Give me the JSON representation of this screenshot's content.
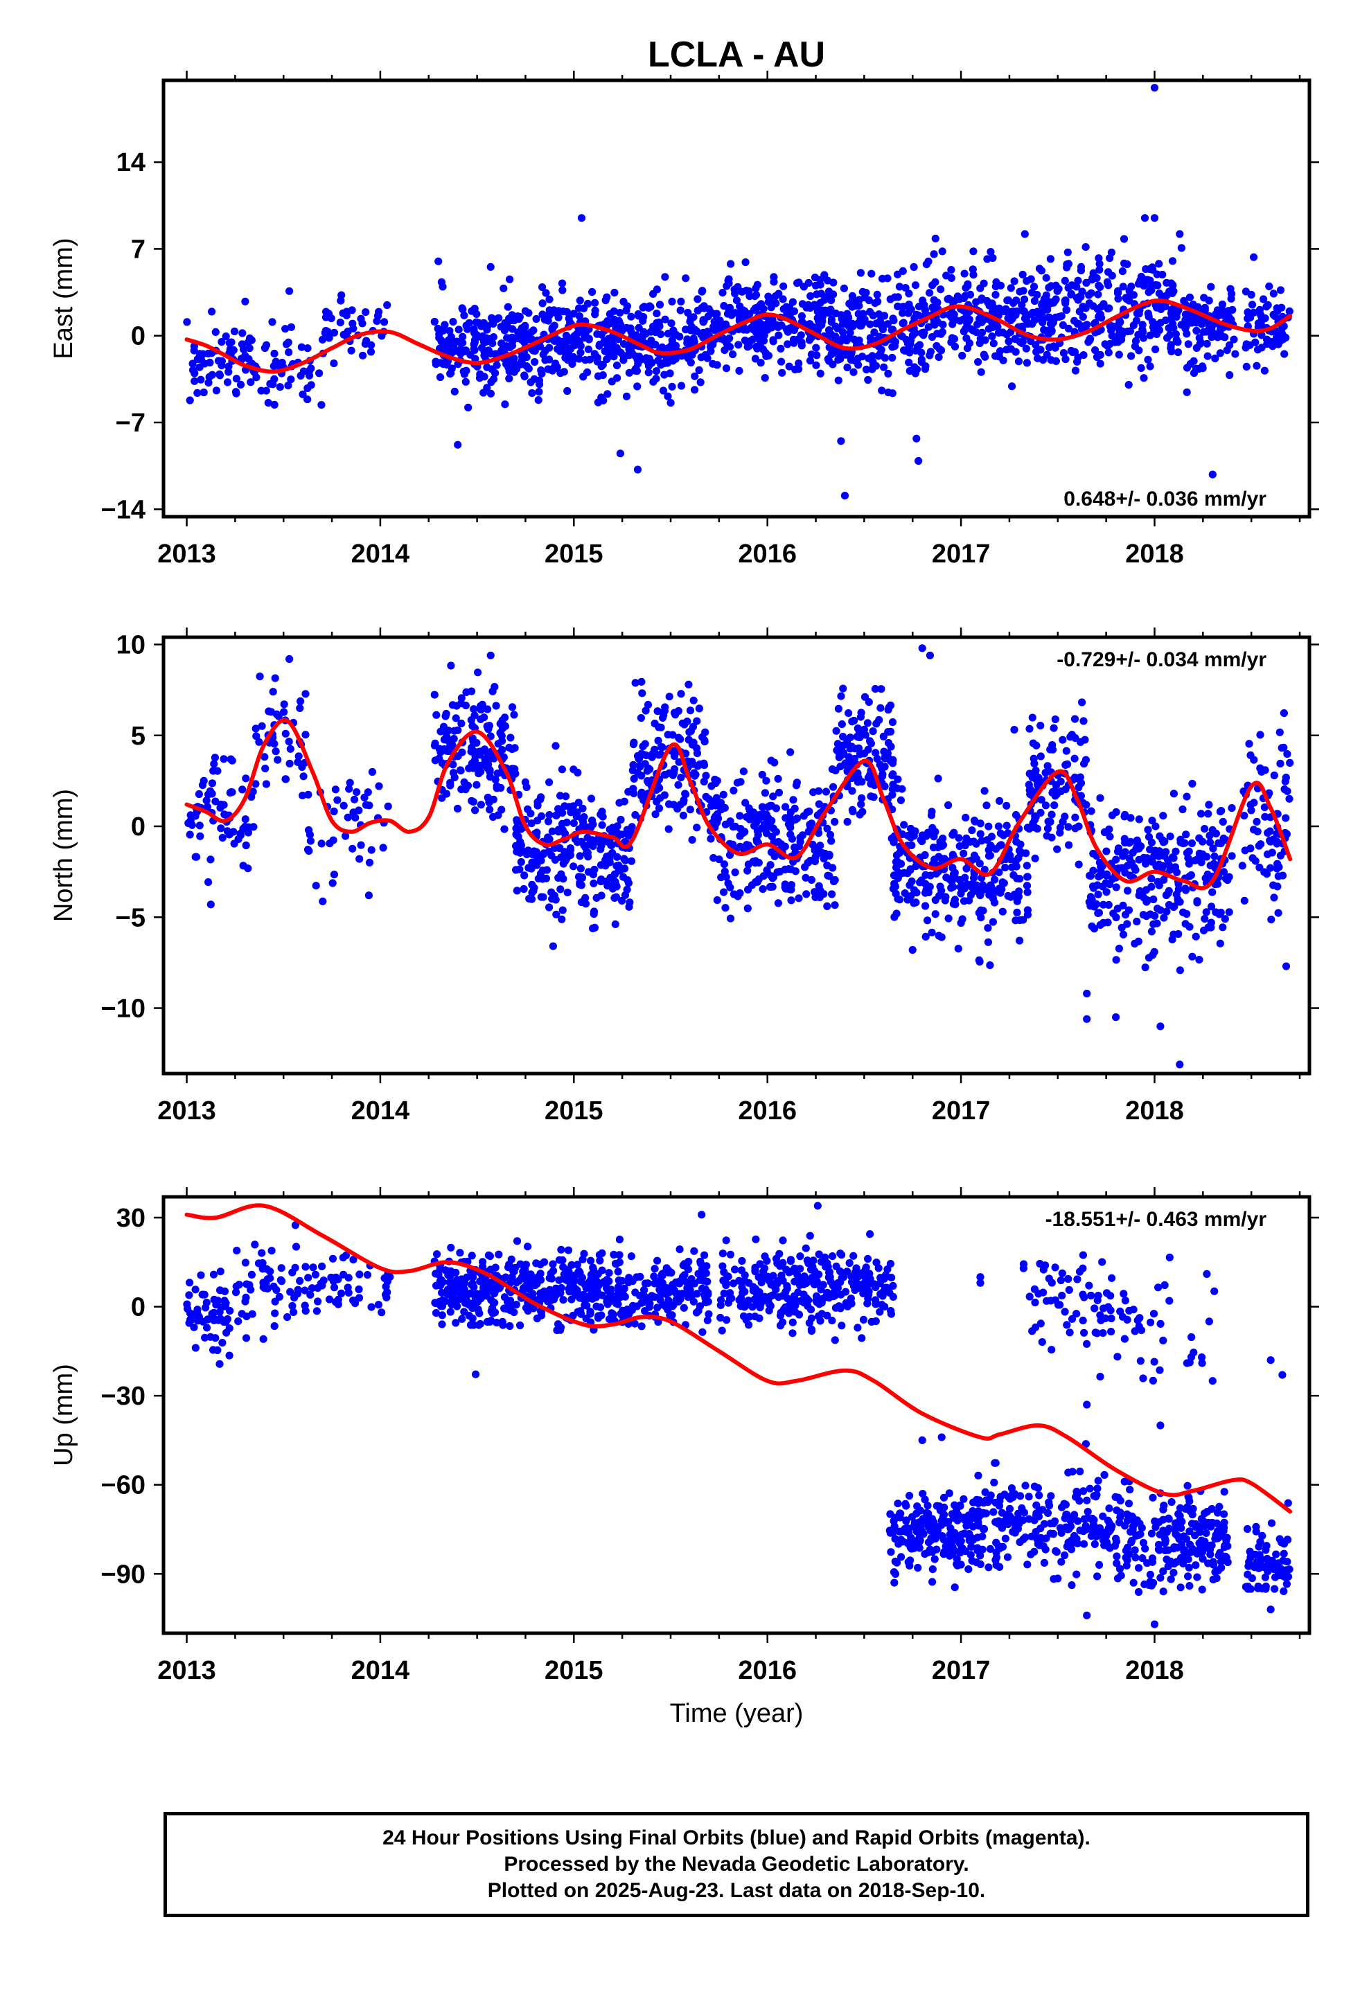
{
  "title": "LCLA - AU",
  "footer": {
    "line1": "24 Hour Positions Using Final Orbits (blue) and Rapid Orbits (magenta).",
    "line2": "Processed by the Nevada Geodetic Laboratory.",
    "line3": "Plotted on 2025-Aug-23. Last data on 2018-Sep-10."
  },
  "colors": {
    "observations": "#0000ff",
    "model": "#ff0000",
    "frame": "#000000"
  },
  "chart_data": [
    {
      "type": "scatter",
      "component": "east",
      "ylabel": "East (mm)",
      "xlabel": "",
      "xlim": [
        2012.88,
        2018.8
      ],
      "ylim": [
        -14.6,
        20.6
      ],
      "xticks": [
        2013,
        2014,
        2015,
        2016,
        2017,
        2018
      ],
      "yticks": [
        -14,
        -7,
        0,
        7,
        14
      ],
      "rate_text": "0.648+/- 0.036 mm/yr",
      "rate_position": "bottom-right",
      "model_curve": {
        "x": [
          2013.0,
          2013.1,
          2013.2,
          2013.3,
          2013.45,
          2013.6,
          2013.75,
          2013.9,
          2014.05,
          2014.2,
          2014.35,
          2014.5,
          2014.65,
          2014.8,
          2014.95,
          2015.05,
          2015.2,
          2015.35,
          2015.45,
          2015.6,
          2015.75,
          2015.9,
          2016.0,
          2016.1,
          2016.25,
          2016.4,
          2016.55,
          2016.7,
          2016.85,
          2016.95,
          2017.05,
          2017.2,
          2017.35,
          2017.5,
          2017.65,
          2017.8,
          2017.95,
          2018.05,
          2018.2,
          2018.35,
          2018.5,
          2018.6,
          2018.7
        ],
        "y": [
          -0.3,
          -0.8,
          -1.6,
          -2.4,
          -2.9,
          -2.2,
          -1.0,
          0.1,
          0.3,
          -0.7,
          -1.7,
          -2.2,
          -1.6,
          -0.6,
          0.5,
          0.9,
          0.3,
          -0.8,
          -1.4,
          -1.1,
          0.1,
          1.2,
          1.7,
          1.3,
          0.1,
          -1.0,
          -0.7,
          0.5,
          1.6,
          2.3,
          2.2,
          1.2,
          0.0,
          -0.3,
          0.3,
          1.5,
          2.6,
          2.8,
          2.0,
          1.0,
          0.4,
          0.6,
          1.6
        ]
      },
      "clusters": [
        {
          "x": [
            2013.0,
            2013.35
          ],
          "center": -2.0,
          "spread": 1.6,
          "n": 70
        },
        {
          "x": [
            2013.35,
            2013.7
          ],
          "center": -2.8,
          "spread": 1.5,
          "n": 45
        },
        {
          "x": [
            2013.7,
            2014.05
          ],
          "center": 0.3,
          "spread": 1.4,
          "n": 45
        },
        {
          "x": [
            2014.28,
            2015.0
          ],
          "center": -0.8,
          "spread": 1.9,
          "n": 300
        },
        {
          "x": [
            2015.0,
            2015.65
          ],
          "center": -0.6,
          "spread": 1.8,
          "n": 260
        },
        {
          "x": [
            2015.65,
            2016.3
          ],
          "center": 0.9,
          "spread": 1.8,
          "n": 260
        },
        {
          "x": [
            2016.3,
            2016.85
          ],
          "center": 0.5,
          "spread": 2.1,
          "n": 230
        },
        {
          "x": [
            2016.85,
            2017.45
          ],
          "center": 1.6,
          "spread": 2.1,
          "n": 240
        },
        {
          "x": [
            2017.45,
            2018.1
          ],
          "center": 1.9,
          "spread": 2.1,
          "n": 260
        },
        {
          "x": [
            2018.1,
            2018.42
          ],
          "center": 0.8,
          "spread": 1.9,
          "n": 110
        },
        {
          "x": [
            2018.47,
            2018.7
          ],
          "center": 0.6,
          "spread": 1.6,
          "n": 70
        }
      ],
      "outliers": [
        {
          "x": 2018.0,
          "y": 20.0
        },
        {
          "x": 2015.04,
          "y": 9.5
        },
        {
          "x": 2017.95,
          "y": 9.5
        },
        {
          "x": 2018.0,
          "y": 9.5
        },
        {
          "x": 2017.33,
          "y": 8.2
        },
        {
          "x": 2018.13,
          "y": 8.2
        },
        {
          "x": 2014.3,
          "y": 6.0
        },
        {
          "x": 2013.53,
          "y": 3.6
        },
        {
          "x": 2014.4,
          "y": -8.8
        },
        {
          "x": 2015.24,
          "y": -9.5
        },
        {
          "x": 2015.33,
          "y": -10.8
        },
        {
          "x": 2016.38,
          "y": -8.5
        },
        {
          "x": 2016.78,
          "y": -10.1
        },
        {
          "x": 2016.4,
          "y": -12.9
        },
        {
          "x": 2018.3,
          "y": -11.2
        },
        {
          "x": 2016.77,
          "y": -8.3
        }
      ]
    },
    {
      "type": "scatter",
      "component": "north",
      "ylabel": "North (mm)",
      "xlabel": "",
      "xlim": [
        2012.88,
        2018.8
      ],
      "ylim": [
        -13.6,
        10.4
      ],
      "xticks": [
        2013,
        2014,
        2015,
        2016,
        2017,
        2018
      ],
      "yticks": [
        -10,
        -5,
        0,
        5,
        10
      ],
      "rate_text": "-0.729+/- 0.034 mm/yr",
      "rate_position": "top-right",
      "model_curve": {
        "x": [
          2013.0,
          2013.1,
          2013.2,
          2013.3,
          2013.4,
          2013.52,
          2013.65,
          2013.75,
          2013.85,
          2013.95,
          2014.05,
          2014.15,
          2014.25,
          2014.35,
          2014.5,
          2014.65,
          2014.75,
          2014.85,
          2014.95,
          2015.05,
          2015.2,
          2015.3,
          2015.5,
          2015.6,
          2015.7,
          2015.85,
          2016.0,
          2016.15,
          2016.3,
          2016.5,
          2016.6,
          2016.7,
          2016.85,
          2017.0,
          2017.15,
          2017.3,
          2017.5,
          2017.6,
          2017.7,
          2017.85,
          2018.0,
          2018.15,
          2018.3,
          2018.5,
          2018.6,
          2018.7
        ],
        "y": [
          1.2,
          0.8,
          0.3,
          1.5,
          4.5,
          5.8,
          3.0,
          0.3,
          -0.3,
          0.2,
          0.3,
          -0.3,
          0.5,
          3.5,
          5.2,
          3.0,
          0.0,
          -1.0,
          -0.7,
          -0.3,
          -0.6,
          -0.8,
          4.4,
          2.5,
          0.0,
          -1.5,
          -1.0,
          -1.7,
          0.8,
          3.6,
          1.5,
          -1.0,
          -2.3,
          -1.8,
          -2.6,
          0.2,
          3.0,
          1.5,
          -1.2,
          -3.0,
          -2.5,
          -3.0,
          -3.0,
          2.2,
          1.0,
          -1.8
        ]
      },
      "clusters": [
        {
          "x": [
            2013.0,
            2013.35
          ],
          "center": 0.8,
          "spread": 1.5,
          "n": 70
        },
        {
          "x": [
            2013.35,
            2013.62
          ],
          "center": 4.4,
          "spread": 1.6,
          "n": 45
        },
        {
          "x": [
            2013.62,
            2014.05
          ],
          "center": -0.4,
          "spread": 1.7,
          "n": 45
        },
        {
          "x": [
            2014.28,
            2014.7
          ],
          "center": 4.2,
          "spread": 1.8,
          "n": 170
        },
        {
          "x": [
            2014.7,
            2015.3
          ],
          "center": -1.3,
          "spread": 1.8,
          "n": 270
        },
        {
          "x": [
            2015.3,
            2015.7
          ],
          "center": 3.6,
          "spread": 1.6,
          "n": 160
        },
        {
          "x": [
            2015.7,
            2016.35
          ],
          "center": -0.8,
          "spread": 1.7,
          "n": 260
        },
        {
          "x": [
            2016.35,
            2016.65
          ],
          "center": 3.8,
          "spread": 1.6,
          "n": 130
        },
        {
          "x": [
            2016.65,
            2017.35
          ],
          "center": -2.4,
          "spread": 1.8,
          "n": 300
        },
        {
          "x": [
            2017.35,
            2017.65
          ],
          "center": 2.2,
          "spread": 1.9,
          "n": 110
        },
        {
          "x": [
            2017.65,
            2018.4
          ],
          "center": -2.8,
          "spread": 2.0,
          "n": 280
        },
        {
          "x": [
            2018.45,
            2018.7
          ],
          "center": 0.5,
          "spread": 2.4,
          "n": 80
        }
      ],
      "outliers": [
        {
          "x": 2016.8,
          "y": 9.8
        },
        {
          "x": 2016.84,
          "y": 9.4
        },
        {
          "x": 2013.53,
          "y": 9.2
        },
        {
          "x": 2014.57,
          "y": 9.4
        },
        {
          "x": 2017.65,
          "y": -9.2
        },
        {
          "x": 2017.65,
          "y": -10.6
        },
        {
          "x": 2017.8,
          "y": -10.5
        },
        {
          "x": 2018.03,
          "y": -11.0
        },
        {
          "x": 2018.13,
          "y": -13.1
        },
        {
          "x": 2018.68,
          "y": -7.7
        },
        {
          "x": 2016.75,
          "y": -6.8
        },
        {
          "x": 2016.9,
          "y": -6.1
        }
      ]
    },
    {
      "type": "scatter",
      "component": "up",
      "ylabel": "Up (mm)",
      "xlabel": "Time (year)",
      "xlim": [
        2012.88,
        2018.8
      ],
      "ylim": [
        -110,
        37
      ],
      "xticks": [
        2013,
        2014,
        2015,
        2016,
        2017,
        2018
      ],
      "yticks": [
        -90,
        -60,
        -30,
        0,
        30
      ],
      "rate_text": "-18.551+/- 0.463 mm/yr",
      "rate_position": "top-right",
      "model_curve": {
        "x": [
          2013.0,
          2013.15,
          2013.4,
          2013.7,
          2014.0,
          2014.15,
          2014.35,
          2014.55,
          2014.8,
          2015.05,
          2015.2,
          2015.35,
          2015.5,
          2015.75,
          2016.0,
          2016.15,
          2016.4,
          2016.55,
          2016.8,
          2017.1,
          2017.2,
          2017.4,
          2017.55,
          2017.8,
          2018.05,
          2018.2,
          2018.4,
          2018.5,
          2018.7
        ],
        "y": [
          31.0,
          30.0,
          34.0,
          24.0,
          13.0,
          12.0,
          15.0,
          11.0,
          1.0,
          -6.0,
          -6.0,
          -3.5,
          -5.0,
          -15.0,
          -25.0,
          -25.0,
          -21.5,
          -25.0,
          -36.0,
          -44.0,
          -43.0,
          -40.0,
          -44.0,
          -55.0,
          -63.0,
          -62.0,
          -58.5,
          -59.5,
          -69.0
        ]
      },
      "clusters": [
        {
          "x": [
            2013.0,
            2013.25
          ],
          "center": -3.0,
          "spread": 6.0,
          "n": 60
        },
        {
          "x": [
            2013.25,
            2013.65
          ],
          "center": 7.0,
          "spread": 7.0,
          "n": 60
        },
        {
          "x": [
            2013.65,
            2014.05
          ],
          "center": 9.0,
          "spread": 6.0,
          "n": 45
        },
        {
          "x": [
            2014.28,
            2015.0
          ],
          "center": 6.0,
          "spread": 6.0,
          "n": 300
        },
        {
          "x": [
            2015.0,
            2015.7
          ],
          "center": 5.5,
          "spread": 6.0,
          "n": 260
        },
        {
          "x": [
            2015.75,
            2016.65
          ],
          "center": 6.0,
          "spread": 6.5,
          "n": 300
        },
        {
          "x": [
            2016.63,
            2017.1
          ],
          "center": -76.0,
          "spread": 7.0,
          "n": 200
        },
        {
          "x": [
            2017.1,
            2017.75
          ],
          "center": -73.0,
          "spread": 7.0,
          "n": 200
        },
        {
          "x": [
            2017.75,
            2018.38
          ],
          "center": -78.0,
          "spread": 8.0,
          "n": 230
        },
        {
          "x": [
            2018.47,
            2018.7
          ],
          "center": -86.0,
          "spread": 6.0,
          "n": 70
        },
        {
          "x": [
            2017.3,
            2017.85
          ],
          "center": 1.0,
          "spread": 8.0,
          "n": 70
        },
        {
          "x": [
            2017.85,
            2018.32
          ],
          "center": -5.0,
          "spread": 10.0,
          "n": 30
        }
      ],
      "outliers": [
        {
          "x": 2015.66,
          "y": 31.0
        },
        {
          "x": 2016.26,
          "y": 34.0
        },
        {
          "x": 2017.1,
          "y": 10.0
        },
        {
          "x": 2017.1,
          "y": 8.0
        },
        {
          "x": 2018.27,
          "y": 11.0
        },
        {
          "x": 2018.3,
          "y": -25.0
        },
        {
          "x": 2018.6,
          "y": -18.0
        },
        {
          "x": 2018.66,
          "y": -23.0
        },
        {
          "x": 2018.0,
          "y": -107.0
        },
        {
          "x": 2017.65,
          "y": -104.0
        },
        {
          "x": 2016.8,
          "y": -45.0
        },
        {
          "x": 2016.9,
          "y": -44.0
        },
        {
          "x": 2017.65,
          "y": -33.0
        },
        {
          "x": 2018.03,
          "y": -40.0
        },
        {
          "x": 2018.6,
          "y": -102.0
        }
      ]
    }
  ]
}
